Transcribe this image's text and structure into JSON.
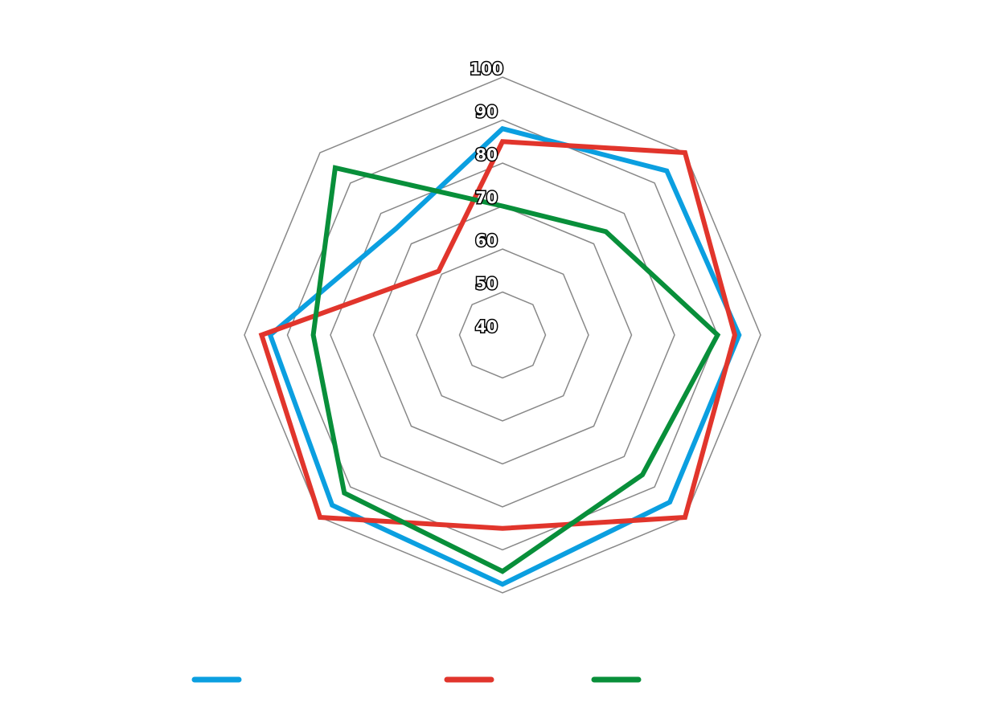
{
  "chart_data": {
    "type": "radar",
    "ylim": [
      40,
      100
    ],
    "yticks": [
      40,
      50,
      60,
      70,
      80,
      90,
      100
    ],
    "grid": true,
    "series": [
      {
        "color": "#0b9fe0",
        "values": [
          88,
          94,
          95,
          95,
          98,
          96,
          94,
          75
        ]
      },
      {
        "color": "#e1352c",
        "values": [
          85,
          100,
          94,
          100,
          85,
          100,
          96,
          61
        ]
      },
      {
        "color": "#088f3a",
        "values": [
          70,
          74,
          90,
          86,
          95,
          92,
          84,
          95
        ]
      }
    ]
  }
}
